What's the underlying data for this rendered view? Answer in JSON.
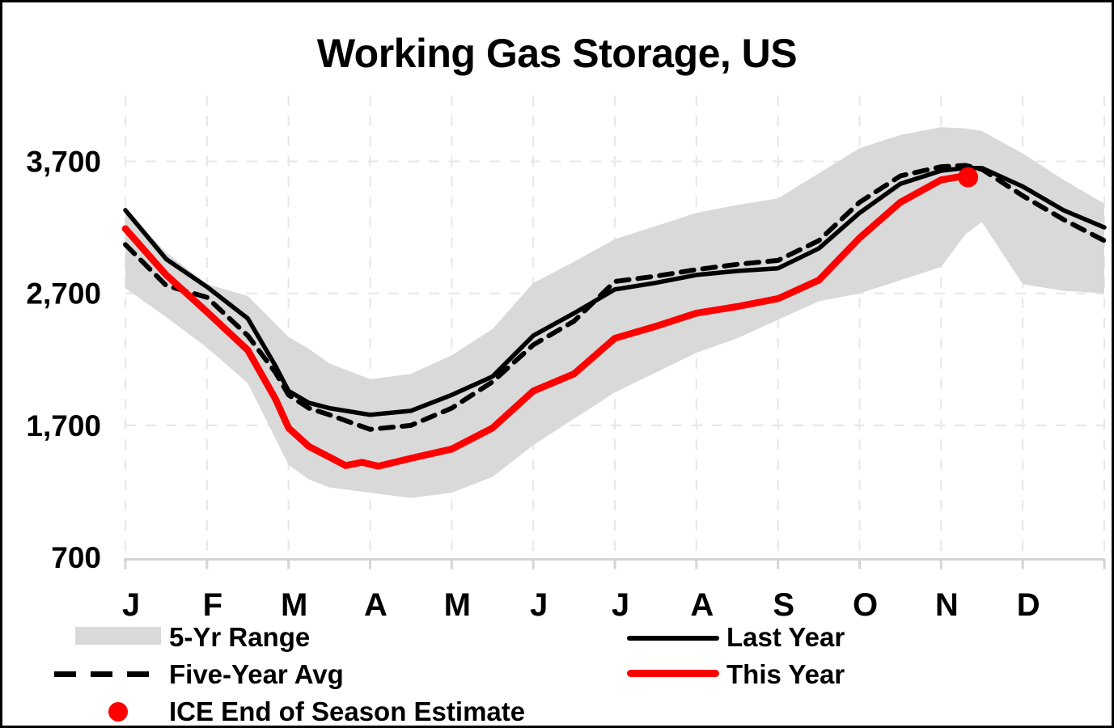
{
  "title": "Working Gas Storage, US",
  "colors": {
    "this_year_red": "#FF0000",
    "last_year_black": "#000000",
    "five_year_avg_black": "#000000",
    "band_gray": "#D9D9D9",
    "grid_gray": "#E8E8E8",
    "axis_gray": "#D5D5D5"
  },
  "chart_data": {
    "type": "line",
    "title": "Working Gas Storage, US",
    "x_axis": {
      "months": [
        "J",
        "F",
        "M",
        "A",
        "M",
        "J",
        "J",
        "A",
        "S",
        "O",
        "N",
        "D"
      ],
      "range_months": [
        0,
        12
      ]
    },
    "y_axis": {
      "ticks": [
        {
          "label": "3,700",
          "value": 3700
        },
        {
          "label": "2,700",
          "value": 2700
        },
        {
          "label": "1,700",
          "value": 1700
        },
        {
          "label": "700",
          "value": 700
        }
      ],
      "ylim": [
        700,
        4200
      ],
      "gridlines": [
        1700,
        2700,
        3700
      ]
    },
    "legend": {
      "band": "5-Yr Range",
      "avg": "Five-Year Avg",
      "ice": "ICE End of Season Estimate",
      "last": "Last Year",
      "this": "This Year"
    },
    "series": [
      {
        "name": "5-Yr Range",
        "type": "band",
        "color": "#D9D9D9",
        "t": [
          0,
          0.5,
          1,
          1.5,
          2,
          2.25,
          2.5,
          3,
          3.5,
          4,
          4.5,
          5,
          5.5,
          6,
          6.5,
          7,
          7.5,
          8,
          8.5,
          9,
          9.5,
          10,
          10.3,
          10.5,
          11,
          11.5,
          12
        ],
        "top": [
          3340,
          3010,
          2770,
          2680,
          2370,
          2280,
          2170,
          2050,
          2090,
          2230,
          2430,
          2780,
          2940,
          3110,
          3210,
          3310,
          3370,
          3420,
          3610,
          3800,
          3900,
          3960,
          3950,
          3930,
          3760,
          3560,
          3380
        ],
        "bottom": [
          2740,
          2520,
          2290,
          2020,
          1400,
          1290,
          1230,
          1190,
          1150,
          1190,
          1310,
          1550,
          1750,
          1950,
          2100,
          2250,
          2360,
          2500,
          2640,
          2700,
          2800,
          2900,
          3150,
          3240,
          2770,
          2720,
          2700
        ]
      },
      {
        "name": "Five-Year Avg",
        "type": "dashed-line",
        "color": "#000000",
        "t": [
          0,
          0.5,
          1,
          1.5,
          1.84,
          2,
          2.25,
          2.5,
          3,
          3.5,
          4,
          4.5,
          5,
          5.5,
          6,
          6.5,
          7,
          7.5,
          8,
          8.5,
          9,
          9.5,
          10,
          10.3,
          10.5,
          11,
          11.5,
          12
        ],
        "values": [
          3070,
          2760,
          2670,
          2380,
          2100,
          1930,
          1830,
          1780,
          1670,
          1700,
          1830,
          2030,
          2310,
          2490,
          2790,
          2830,
          2880,
          2920,
          2950,
          3100,
          3390,
          3590,
          3660,
          3670,
          3640,
          3440,
          3260,
          3100
        ]
      },
      {
        "name": "Last Year",
        "type": "line",
        "color": "#000000",
        "t": [
          0,
          0.5,
          1,
          1.5,
          1.84,
          2,
          2.25,
          2.5,
          3,
          3.5,
          4,
          4.5,
          5,
          5.5,
          6,
          6.5,
          7,
          7.5,
          8,
          8.5,
          9,
          9.5,
          10,
          10.3,
          10.5,
          11,
          11.5,
          12
        ],
        "values": [
          3330,
          2960,
          2750,
          2510,
          2150,
          1960,
          1870,
          1830,
          1780,
          1810,
          1930,
          2070,
          2380,
          2550,
          2730,
          2780,
          2840,
          2870,
          2890,
          3040,
          3310,
          3530,
          3630,
          3650,
          3650,
          3510,
          3330,
          3200
        ]
      },
      {
        "name": "This Year",
        "type": "line",
        "color": "#FF0000",
        "t": [
          0,
          0.5,
          1,
          1.5,
          1.84,
          2,
          2.25,
          2.5,
          2.7,
          2.9,
          3.1,
          3.5,
          4,
          4.5,
          5,
          5.5,
          6,
          6.5,
          7,
          7.5,
          8,
          8.5,
          9,
          9.5,
          10,
          10.28
        ],
        "values": [
          3190,
          2840,
          2560,
          2270,
          1900,
          1680,
          1540,
          1460,
          1395,
          1420,
          1390,
          1450,
          1520,
          1680,
          1960,
          2090,
          2360,
          2450,
          2550,
          2600,
          2660,
          2800,
          3120,
          3390,
          3560,
          3590
        ]
      },
      {
        "name": "ICE End of Season Estimate",
        "type": "point",
        "color": "#FF0000",
        "t": 10.33,
        "value": 3580
      }
    ]
  }
}
